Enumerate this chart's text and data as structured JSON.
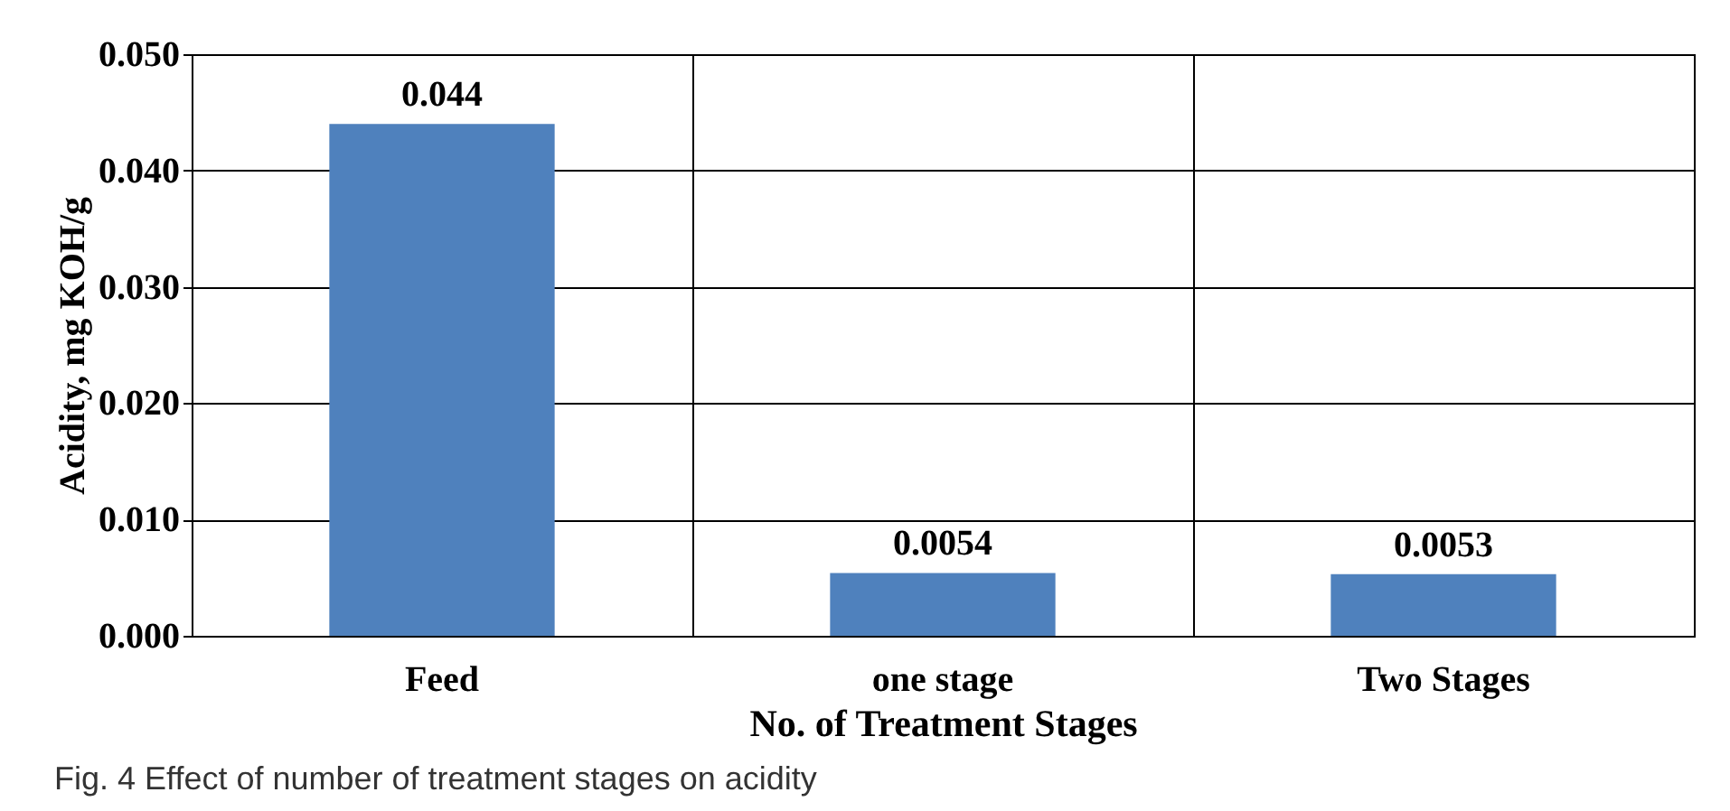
{
  "chart_data": {
    "type": "bar",
    "xlabel": "No. of Treatment Stages",
    "ylabel": "Acidity, mg KOH/g",
    "categories": [
      "Feed",
      "one stage",
      "Two Stages"
    ],
    "values": [
      0.044,
      0.0054,
      0.0053
    ],
    "color": "#4f81bd",
    "ylim": [
      0,
      0.05
    ],
    "yticks": [
      {
        "value": 0,
        "label": "0.000"
      },
      {
        "value": 0.01,
        "label": "0.010"
      },
      {
        "value": 0.02,
        "label": "0.020"
      },
      {
        "value": 0.03,
        "label": "0.030"
      },
      {
        "value": 0.04,
        "label": "0.040"
      },
      {
        "value": 0.05,
        "label": "0.050"
      }
    ],
    "grid": true,
    "data_labels": true,
    "annotations": [
      "Fig. 4 Effect of number of treatment stages on acidity"
    ]
  }
}
